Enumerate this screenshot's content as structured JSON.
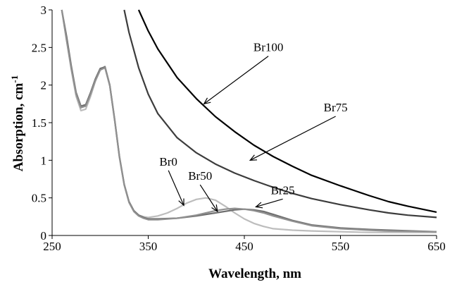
{
  "chart_data": {
    "type": "line",
    "xlabel": "Wavelength, nm",
    "ylabel": "Absorption, cm",
    "ylabel_superscript": "-1",
    "xlim": [
      250,
      650
    ],
    "ylim": [
      0,
      3
    ],
    "xticks": [
      250,
      350,
      450,
      550,
      650
    ],
    "yticks": [
      0,
      0.5,
      1,
      1.5,
      2,
      2.5,
      3
    ],
    "grid": false,
    "legend": "none",
    "series": [
      {
        "name": "Br0",
        "color": "#bdbdbd",
        "x": [
          260,
          265,
          270,
          275,
          280,
          285,
          290,
          295,
          300,
          305,
          310,
          315,
          320,
          325,
          330,
          335,
          340,
          345,
          350,
          360,
          370,
          380,
          390,
          400,
          410,
          420,
          430,
          440,
          450,
          460,
          470,
          480,
          500,
          520,
          550,
          580,
          600,
          650
        ],
        "y": [
          3.0,
          2.6,
          2.2,
          1.85,
          1.66,
          1.68,
          1.85,
          2.05,
          2.2,
          2.25,
          2.0,
          1.55,
          1.05,
          0.68,
          0.45,
          0.33,
          0.27,
          0.25,
          0.24,
          0.26,
          0.3,
          0.36,
          0.43,
          0.48,
          0.5,
          0.47,
          0.39,
          0.3,
          0.22,
          0.16,
          0.12,
          0.09,
          0.07,
          0.06,
          0.05,
          0.04,
          0.04,
          0.04
        ]
      },
      {
        "name": "Br25",
        "color": "#6e6e6e",
        "x": [
          260,
          265,
          270,
          275,
          280,
          285,
          290,
          295,
          300,
          305,
          310,
          315,
          320,
          325,
          330,
          335,
          340,
          345,
          350,
          360,
          380,
          400,
          420,
          440,
          450,
          460,
          470,
          480,
          500,
          520,
          550,
          580,
          600,
          650
        ],
        "y": [
          3.0,
          2.65,
          2.25,
          1.9,
          1.72,
          1.74,
          1.9,
          2.08,
          2.22,
          2.24,
          2.0,
          1.55,
          1.05,
          0.68,
          0.45,
          0.33,
          0.27,
          0.24,
          0.22,
          0.22,
          0.23,
          0.26,
          0.3,
          0.34,
          0.35,
          0.34,
          0.32,
          0.28,
          0.2,
          0.14,
          0.1,
          0.08,
          0.07,
          0.05
        ]
      },
      {
        "name": "Br50",
        "color": "#909090",
        "x": [
          260,
          265,
          270,
          275,
          280,
          285,
          290,
          295,
          300,
          305,
          310,
          315,
          320,
          325,
          330,
          335,
          340,
          345,
          350,
          360,
          380,
          400,
          420,
          430,
          440,
          450,
          460,
          470,
          480,
          500,
          520,
          550,
          580,
          600,
          650
        ],
        "y": [
          3.0,
          2.6,
          2.22,
          1.88,
          1.7,
          1.72,
          1.88,
          2.06,
          2.2,
          2.23,
          1.99,
          1.54,
          1.04,
          0.67,
          0.44,
          0.32,
          0.26,
          0.23,
          0.21,
          0.21,
          0.23,
          0.27,
          0.33,
          0.35,
          0.36,
          0.35,
          0.33,
          0.3,
          0.26,
          0.19,
          0.13,
          0.09,
          0.07,
          0.06,
          0.05
        ]
      },
      {
        "name": "Br75",
        "color": "#3c3c3c",
        "x": [
          325,
          330,
          340,
          350,
          360,
          380,
          400,
          420,
          440,
          460,
          480,
          500,
          520,
          550,
          580,
          600,
          620,
          650
        ],
        "y": [
          3.0,
          2.7,
          2.23,
          1.88,
          1.62,
          1.3,
          1.1,
          0.95,
          0.83,
          0.73,
          0.64,
          0.56,
          0.49,
          0.41,
          0.34,
          0.3,
          0.27,
          0.24
        ]
      },
      {
        "name": "Br100",
        "color": "#000000",
        "x": [
          340,
          350,
          360,
          380,
          400,
          420,
          440,
          460,
          480,
          500,
          520,
          550,
          580,
          600,
          620,
          650
        ],
        "y": [
          3.0,
          2.72,
          2.48,
          2.1,
          1.82,
          1.58,
          1.38,
          1.2,
          1.05,
          0.92,
          0.8,
          0.66,
          0.53,
          0.45,
          0.39,
          0.31
        ]
      }
    ],
    "annotations": [
      {
        "label": "Br100",
        "tx": 475,
        "ty": 2.45,
        "ax": 408,
        "ay": 1.75
      },
      {
        "label": "Br75",
        "tx": 545,
        "ty": 1.65,
        "ax": 456,
        "ay": 1.0
      },
      {
        "label": "Br0",
        "tx": 371,
        "ty": 0.93,
        "ax": 387,
        "ay": 0.4
      },
      {
        "label": "Br50",
        "tx": 404,
        "ty": 0.74,
        "ax": 422,
        "ay": 0.32
      },
      {
        "label": "Br25",
        "tx": 490,
        "ty": 0.55,
        "ax": 462,
        "ay": 0.38
      }
    ]
  }
}
